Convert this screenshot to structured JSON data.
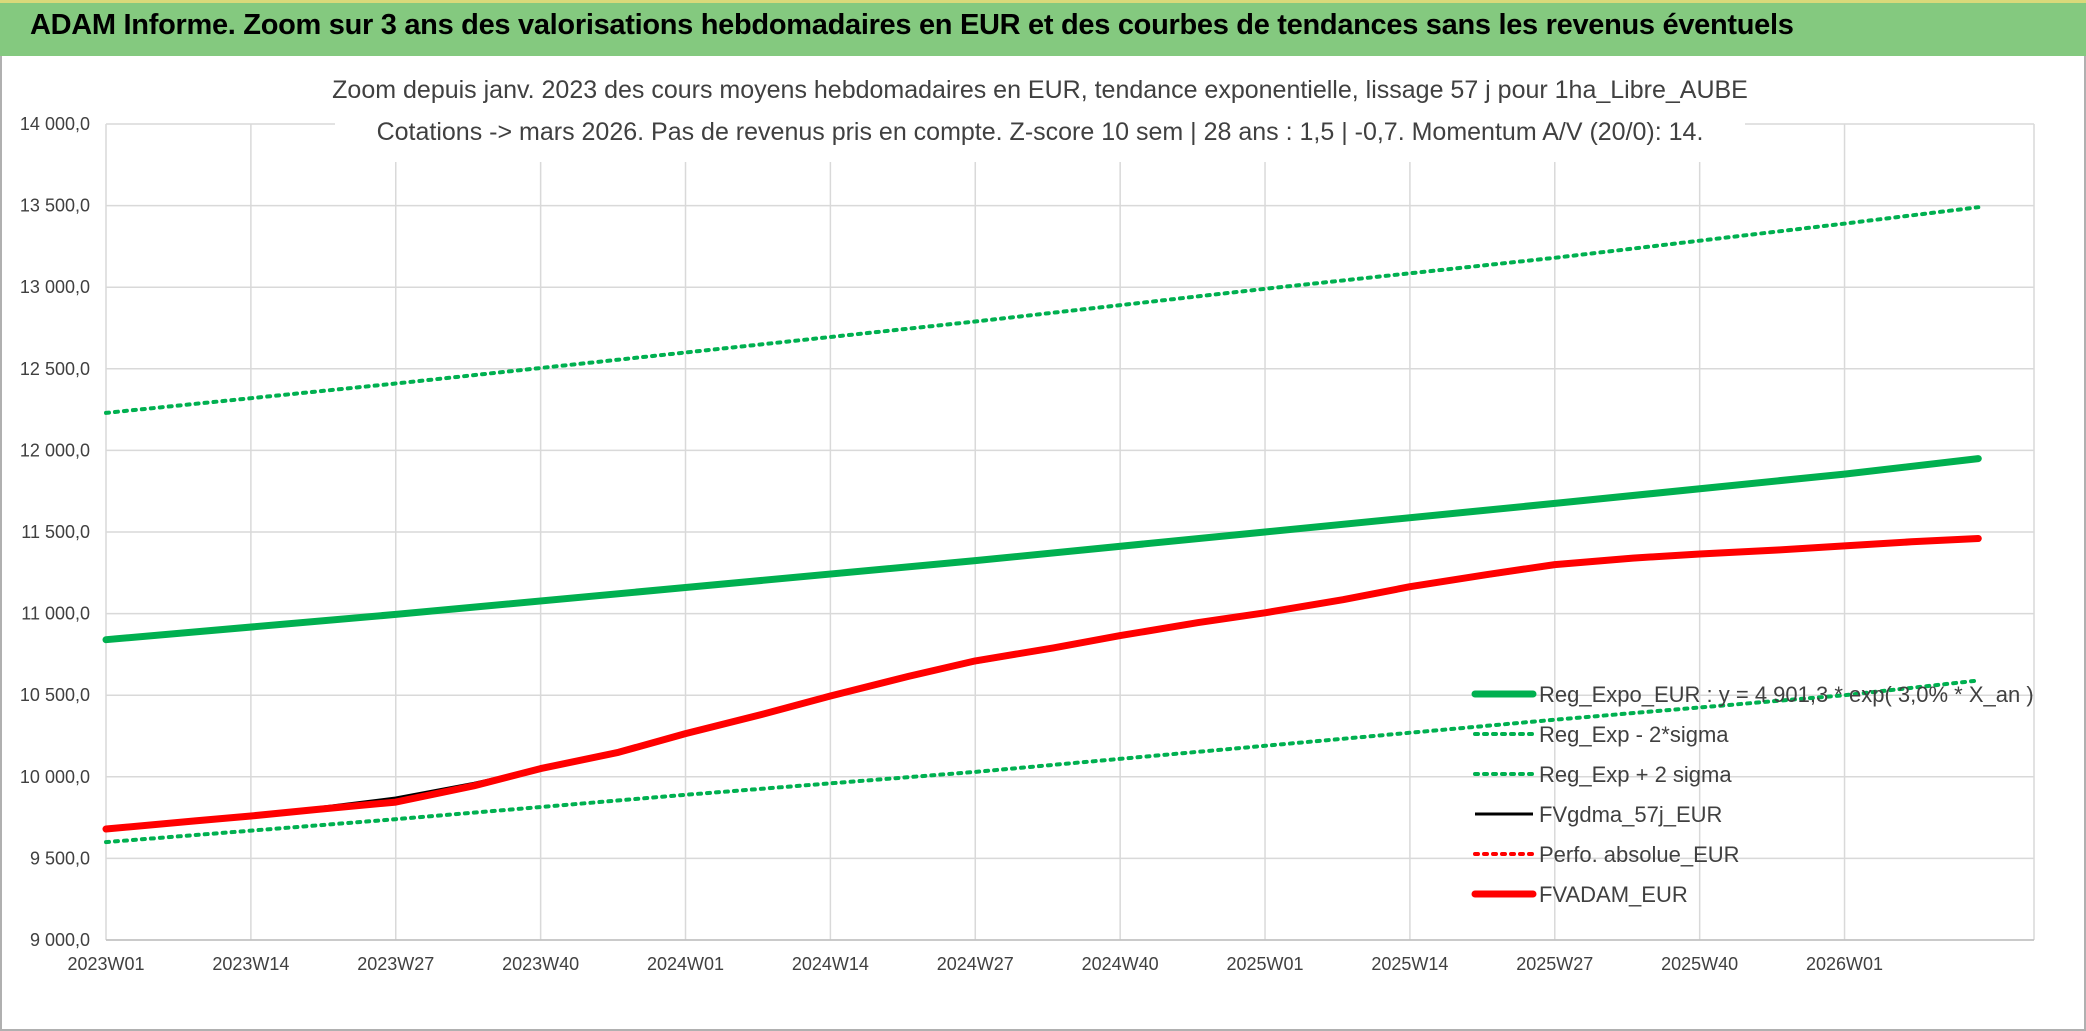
{
  "banner": {
    "title": "ADAM Informe. Zoom sur 3 ans des valorisations hebdomadaires en EUR et des courbes de tendances sans les revenus éventuels"
  },
  "colors": {
    "banner_bg": "#84c97f",
    "trend_green": "#00b050",
    "fvgdma_black": "#000000",
    "fvadam_red": "#ff0000",
    "gridline": "#d9d9d9",
    "text": "#404040"
  },
  "chart_data": {
    "type": "line",
    "title_lines": [
      "Zoom depuis janv. 2023 des cours moyens hebdomadaires en EUR, tendance exponentielle, lissage 57 j pour 1ha_Libre_AUBE",
      "Cotations -> mars 2026. Pas de revenus pris en compte. Z-score 10 sem | 28 ans : 1,5 | -0,7. Momentum A/V (20/0): 14."
    ],
    "ylim": [
      9000,
      14000
    ],
    "y_ticks": [
      9000,
      9500,
      10000,
      10500,
      11000,
      11500,
      12000,
      12500,
      13000,
      13500,
      14000
    ],
    "y_tick_labels": [
      "9 000,0",
      "9 500,0",
      "10 000,0",
      "10 500,0",
      "11 000,0",
      "11 500,0",
      "12 000,0",
      "12 500,0",
      "13 000,0",
      "13 500,0",
      "14 000,0"
    ],
    "x_range_weeks": [
      0,
      130
    ],
    "x_ticks": [
      0,
      13,
      26,
      39,
      52,
      65,
      78,
      91,
      104,
      117,
      130,
      143,
      156
    ],
    "x_tick_labels": [
      "2023W01",
      "2023W14",
      "2023W27",
      "2023W40",
      "2024W01",
      "2024W14",
      "2024W27",
      "2024W40",
      "2025W01",
      "2025W14",
      "2025W27",
      "2025W40",
      "2026W01"
    ],
    "grid": true,
    "legend_position": "right",
    "series": [
      {
        "name": "Reg_Expo_EUR : y = 4 901,3 * exp( 3,0% * X_an )",
        "style": "solid-thick",
        "color": "#00b050",
        "x": [
          0,
          26,
          52,
          78,
          104,
          130,
          156,
          168
        ],
        "y": [
          10840,
          10995,
          11160,
          11325,
          11500,
          11675,
          11855,
          11950
        ]
      },
      {
        "name": "Reg_Exp - 2*sigma",
        "style": "dotted",
        "color": "#00b050",
        "x": [
          0,
          26,
          52,
          78,
          104,
          130,
          156,
          168
        ],
        "y": [
          9600,
          9740,
          9890,
          10030,
          10190,
          10350,
          10500,
          10590
        ]
      },
      {
        "name": "Reg_Exp + 2 sigma",
        "style": "dotted",
        "color": "#00b050",
        "x": [
          0,
          26,
          52,
          78,
          104,
          130,
          156,
          168
        ],
        "y": [
          12230,
          12410,
          12600,
          12790,
          12990,
          13180,
          13390,
          13490
        ]
      },
      {
        "name": "FVgdma_57j_EUR",
        "style": "solid",
        "color": "#000000",
        "x": [
          0,
          8,
          13,
          19,
          26,
          33,
          39,
          46,
          52,
          59,
          65,
          72,
          78,
          85,
          91,
          98,
          104,
          111,
          117,
          124,
          130,
          137,
          143,
          150,
          156,
          162,
          168
        ],
        "y": [
          9680,
          9730,
          9760,
          9810,
          9870,
          9960,
          10050,
          10150,
          10260,
          10380,
          10490,
          10610,
          10700,
          10780,
          10860,
          10940,
          11000,
          11080,
          11160,
          11230,
          11290,
          11330,
          11360,
          11385,
          11410,
          11435,
          11460
        ]
      },
      {
        "name": "Perfo. absolue_EUR",
        "style": "dotted",
        "color": "#ff0000",
        "x": [
          0,
          8,
          13,
          19,
          26,
          33,
          39,
          46,
          52,
          59,
          65,
          72,
          78,
          85,
          91,
          98,
          104,
          111,
          117,
          124,
          130,
          137,
          143,
          150,
          156,
          162,
          168
        ],
        "y": [
          9680,
          9730,
          9760,
          9800,
          9845,
          9945,
          10050,
          10150,
          10265,
          10385,
          10495,
          10615,
          10710,
          10790,
          10865,
          10945,
          11005,
          11085,
          11165,
          11240,
          11300,
          11340,
          11365,
          11390,
          11415,
          11440,
          11460
        ]
      },
      {
        "name": "FVADAM_EUR",
        "style": "solid-thick",
        "color": "#ff0000",
        "x": [
          0,
          8,
          13,
          19,
          26,
          33,
          39,
          46,
          52,
          59,
          65,
          72,
          78,
          85,
          91,
          98,
          104,
          111,
          117,
          124,
          130,
          137,
          143,
          150,
          156,
          162,
          168
        ],
        "y": [
          9680,
          9730,
          9760,
          9800,
          9845,
          9945,
          10050,
          10150,
          10265,
          10385,
          10495,
          10615,
          10710,
          10790,
          10865,
          10945,
          11005,
          11085,
          11165,
          11240,
          11300,
          11340,
          11365,
          11390,
          11415,
          11440,
          11460
        ]
      }
    ]
  }
}
